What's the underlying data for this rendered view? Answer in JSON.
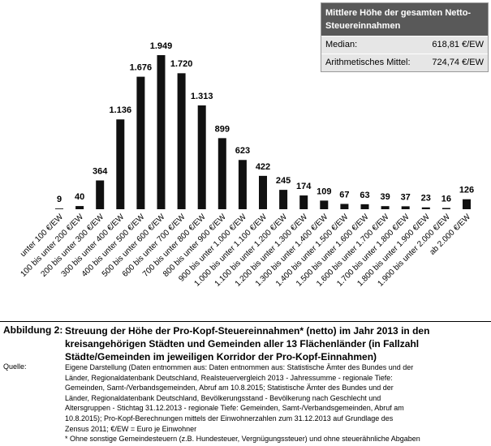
{
  "chart_data": {
    "type": "bar",
    "categories": [
      "unter 100 €/EW",
      "100 bis unter 200 €/EW",
      "200 bis unter 300 €/EW",
      "300 bis unter 400 €/EW",
      "400 bis unter 500 €/EW",
      "500 bis unter 600 €/EW",
      "600 bis unter 700 €/EW",
      "700 bis unter 800 €/EW",
      "800 bis unter 900 €/EW",
      "900 bis unter 1.000 €/EW",
      "1.000 bis unter 1.100 €/EW",
      "1.100 bis unter 1.200 €/EW",
      "1.200 bis unter 1.300 €/EW",
      "1.300 bis unter 1.400 €/EW",
      "1.400 bis unter 1.500 €/EW",
      "1.500 bis unter 1.600 €/EW",
      "1.600 bis unter 1.700 €/EW",
      "1.700 bis unter 1.800 €/EW",
      "1.800 bis unter 1.900 €/EW",
      "1.900 bis unter 2.000 €/EW",
      "ab 2.000 €/EW"
    ],
    "values": [
      9,
      40,
      364,
      1136,
      1676,
      1949,
      1720,
      1313,
      899,
      623,
      422,
      245,
      174,
      109,
      67,
      63,
      39,
      37,
      23,
      16,
      126
    ],
    "value_labels": [
      "9",
      "40",
      "364",
      "1.136",
      "1.676",
      "1.949",
      "1.720",
      "1.313",
      "899",
      "623",
      "422",
      "245",
      "174",
      "109",
      "67",
      "63",
      "39",
      "37",
      "23",
      "16",
      "126"
    ],
    "color": "#111111"
  },
  "info_box": {
    "title": "Mittlere Höhe der gesamten Netto-Steuereinnahmen",
    "rows": [
      [
        "Median:",
        "618,81 €/EW"
      ],
      [
        "Arithmetisches Mittel:",
        "724,74 €/EW"
      ]
    ]
  },
  "figure": {
    "label": "Abbildung 2:",
    "caption": [
      "Streuung der Höhe der Pro-Kopf-Steuereinnahmen* (netto) im Jahr 2013 in den",
      "kreisangehörigen Städten und Gemeinden aller 13 Flächenländer (in Fallzahl",
      "Städte/Gemeinden im jeweiligen Korridor der Pro-Kopf-Einnahmen)"
    ]
  },
  "source": {
    "label": "Quelle:",
    "lines": [
      "Eigene Darstellung (Daten entnommen aus: Daten entnommen aus: Statistische Ämter des Bundes und der",
      "Länder, Regionaldatenbank Deutschland, Realsteuervergleich 2013 - Jahressumme - regionale Tiefe:",
      "Gemeinden, Samt-/Verbandsgemeinden, Abruf am 10.8.2015;  Statistische Ämter des Bundes und der",
      "Länder, Regionaldatenbank Deutschland, Bevölkerungsstand - Bevölkerung nach Geschlecht und",
      "Altersgruppen - Stichtag 31.12.2013 -  regionale Tiefe: Gemeinden, Samt-/Verbandsgemeinden, Abruf am",
      "10.8.2015); Pro-Kopf-Berechnungen mittels der Einwohnerzahlen zum 31.12.2013 auf Grundlage des",
      "Zensus 2011; €/EW = Euro je Einwohner",
      "* Ohne sonstige Gemeindesteuern (z.B. Hundesteuer, Vergnügungssteuer) und ohne steuerähnliche Abgaben"
    ]
  }
}
